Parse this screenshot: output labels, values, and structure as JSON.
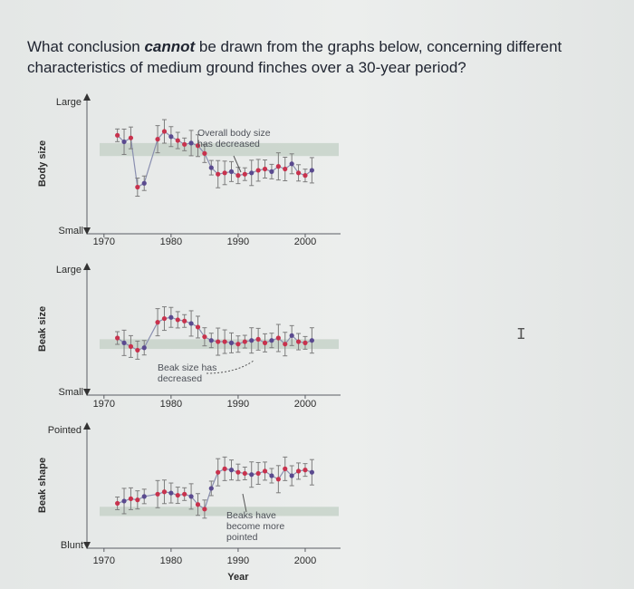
{
  "question": {
    "pre": "What conclusion ",
    "emph": "cannot",
    "post": " be drawn from the graphs below, concerning different characteristics of medium ground finches over a 30-year period?"
  },
  "colors": {
    "band": "#c7d2c9",
    "axis": "#5a5d63",
    "dot": "#c8324d",
    "dot2": "#5a4a8f",
    "error": "#7d7d7d"
  },
  "chart_data": [
    {
      "type": "scatter",
      "ylabel": "Body size",
      "ytop": "Large",
      "ybottom": "Small",
      "xticks": [
        1970,
        1980,
        1990,
        2000
      ],
      "xlim": [
        1968,
        2005
      ],
      "ylim": [
        0,
        10
      ],
      "band": [
        6.0,
        7.0
      ],
      "annotation": "Overall body size has decreased",
      "x": [
        1972,
        1973,
        1974,
        1975,
        1976,
        1978,
        1979,
        1980,
        1981,
        1982,
        1983,
        1984,
        1985,
        1986,
        1987,
        1988,
        1989,
        1990,
        1991,
        1992,
        1993,
        1994,
        1995,
        1996,
        1997,
        1998,
        1999,
        2000,
        2001
      ],
      "y": [
        7.6,
        7.1,
        7.4,
        3.6,
        3.9,
        7.3,
        7.9,
        7.5,
        7.2,
        6.9,
        7.0,
        6.8,
        6.2,
        5.1,
        4.6,
        4.7,
        4.8,
        4.5,
        4.6,
        4.7,
        4.9,
        5.0,
        4.8,
        5.2,
        5.0,
        5.4,
        4.7,
        4.5,
        4.9
      ]
    },
    {
      "type": "scatter",
      "ylabel": "Beak size",
      "ytop": "Large",
      "ybottom": "Small",
      "xticks": [
        1970,
        1980,
        1990,
        2000
      ],
      "xlim": [
        1968,
        2005
      ],
      "ylim": [
        0,
        10
      ],
      "band": [
        3.8,
        4.6
      ],
      "annotation": "Beak size has decreased",
      "x": [
        1972,
        1973,
        1974,
        1975,
        1976,
        1978,
        1979,
        1980,
        1981,
        1982,
        1983,
        1984,
        1985,
        1986,
        1987,
        1988,
        1989,
        1990,
        1991,
        1992,
        1993,
        1994,
        1995,
        1996,
        1997,
        1998,
        1999,
        2000,
        2001
      ],
      "y": [
        4.7,
        4.3,
        4.0,
        3.7,
        3.9,
        6.0,
        6.3,
        6.4,
        6.2,
        6.1,
        5.9,
        5.6,
        4.8,
        4.5,
        4.4,
        4.4,
        4.3,
        4.2,
        4.4,
        4.5,
        4.6,
        4.3,
        4.5,
        4.7,
        4.2,
        4.9,
        4.4,
        4.3,
        4.5
      ]
    },
    {
      "type": "scatter",
      "ylabel": "Beak shape",
      "ytop": "Pointed",
      "ybottom": "Blunt",
      "xticks": [
        1970,
        1980,
        1990,
        2000
      ],
      "xlim": [
        1968,
        2005
      ],
      "ylim": [
        0,
        10
      ],
      "band": [
        2.8,
        3.6
      ],
      "annotation": "Beaks have become more pointed",
      "xlabel": "Year",
      "x": [
        1972,
        1973,
        1974,
        1975,
        1976,
        1978,
        1979,
        1980,
        1981,
        1982,
        1983,
        1984,
        1985,
        1986,
        1987,
        1988,
        1989,
        1990,
        1991,
        1992,
        1993,
        1994,
        1995,
        1996,
        1997,
        1998,
        1999,
        2000,
        2001
      ],
      "y": [
        3.9,
        4.1,
        4.3,
        4.2,
        4.5,
        4.7,
        4.9,
        4.8,
        4.6,
        4.7,
        4.5,
        3.8,
        3.4,
        5.2,
        6.6,
        6.9,
        6.8,
        6.6,
        6.5,
        6.4,
        6.5,
        6.7,
        6.3,
        6.0,
        6.9,
        6.3,
        6.7,
        6.8,
        6.6
      ]
    }
  ]
}
